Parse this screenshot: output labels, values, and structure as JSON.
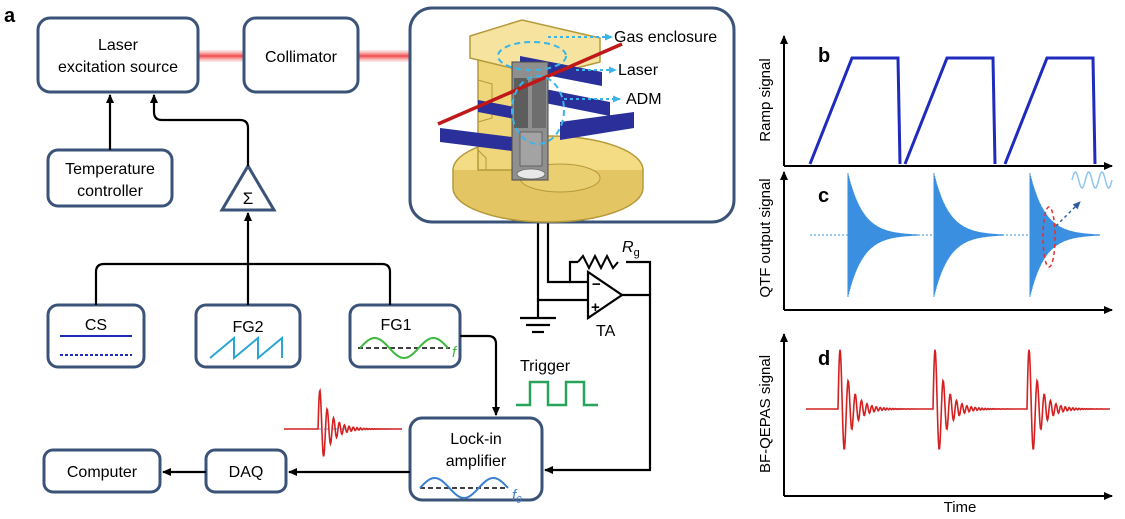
{
  "panel_labels": {
    "a": "a",
    "b": "b",
    "c": "c",
    "d": "d"
  },
  "boxes": {
    "laser_line1": "Laser",
    "laser_line2": "excitation source",
    "collimator": "Collimator",
    "temp_line1": "Temperature",
    "temp_line2": "controller",
    "cs": "CS",
    "fg2": "FG2",
    "fg1": "FG1",
    "lockin_line1": "Lock-in",
    "lockin_line2": "amplifier",
    "daq": "DAQ",
    "computer": "Computer"
  },
  "symbols": {
    "sum": "Σ",
    "f": "f",
    "f0_base": "f",
    "f0_sub": "0",
    "rg_base": "R",
    "rg_sub": "g",
    "minus": "−",
    "plus": "+"
  },
  "labels": {
    "gas_enclosure": "Gas enclosure",
    "laser": "Laser",
    "adm": "ADM",
    "ta": "TA",
    "trigger": "Trigger"
  },
  "plots": {
    "b_ylabel": "Ramp signal",
    "c_ylabel": "QTF output signal",
    "d_ylabel": "BF-QEPAS signal",
    "xlabel": "Time"
  },
  "colors": {
    "box_border": "#3b5379",
    "ramp_blue": "#1f2bbd",
    "qtf_blue": "#3a8fe0",
    "bf_red": "#d42020",
    "dash_cyan": "#3bb5e8",
    "trigger_green": "#27a45a",
    "fg_green": "#3cb83c",
    "fg2_cyan": "#2aa6d6",
    "laser_glow": "#f25c5c",
    "housing_yellow": "#f3dc84",
    "housing_blue": "#2a2f9a"
  }
}
